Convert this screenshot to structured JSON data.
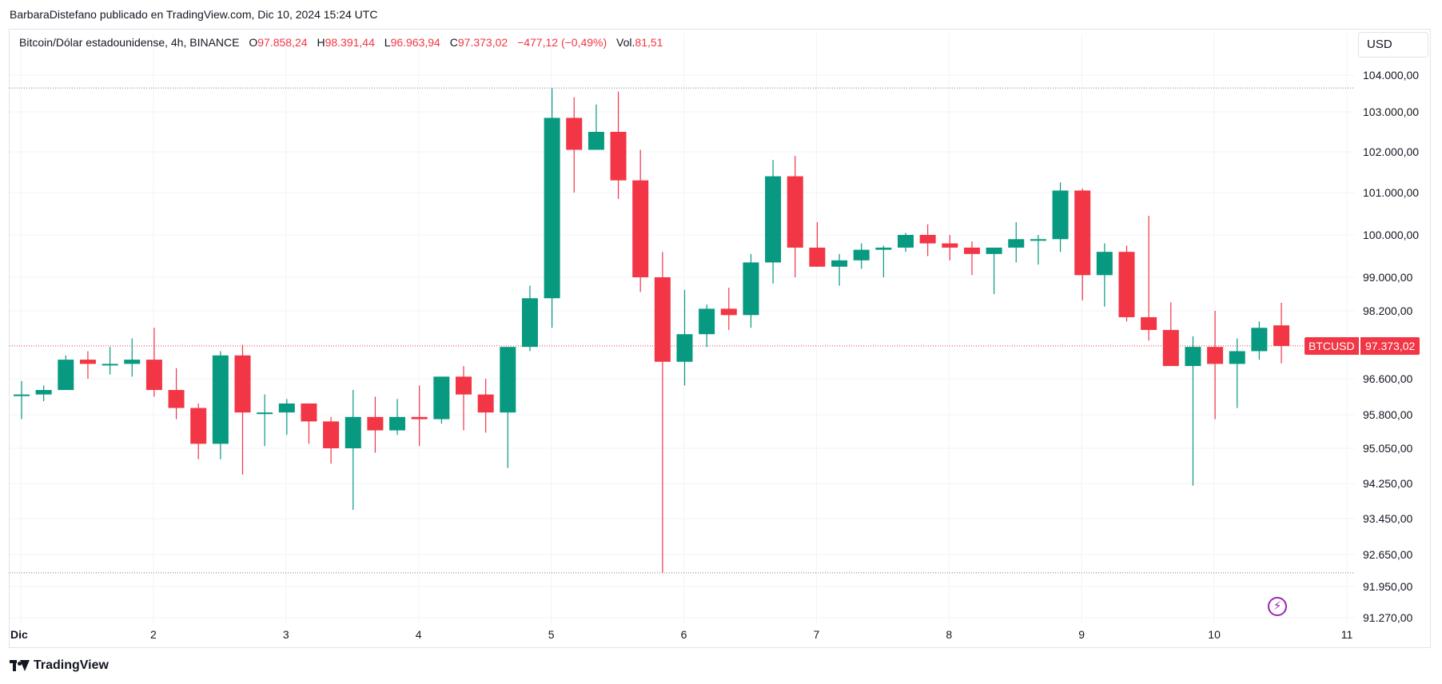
{
  "caption": "BarbaraDistefano publicado en TradingView.com, Dic 10, 2024 15:24 UTC",
  "legend": {
    "symbol": "Bitcoin/Dólar estadounidense, 4h, BINANCE",
    "o_label": "O",
    "o_value": "97.858,24",
    "h_label": "H",
    "h_value": "98.391,44",
    "l_label": "L",
    "l_value": "96.963,94",
    "c_label": "C",
    "c_value": "97.373,02",
    "change": "−477,12 (−0,49%)",
    "vol_label": "Vol.",
    "vol_value": "81,51"
  },
  "currency": "USD",
  "price_tag": {
    "symbol": "BTCUSD",
    "price": "97.373,02"
  },
  "brand": "TradingView",
  "colors": {
    "up": "#089981",
    "down": "#f23645",
    "grid": "#f0f3fa",
    "accent": "#9c27b0"
  },
  "icons": {
    "flash": "lightning-icon",
    "brand": "tradingview-logo-icon"
  },
  "chart_data": {
    "type": "candlestick",
    "timeframe": "4h",
    "y_ticks": [
      104000,
      103000,
      102000,
      101000,
      100000,
      99000,
      98200,
      96600,
      95800,
      95050,
      94250,
      93450,
      92650,
      91950,
      91270
    ],
    "y_tick_labels": [
      "104.000,00",
      "103.000,00",
      "102.000,00",
      "101.000,00",
      "100.000,00",
      "99.000,00",
      "98.200,00",
      "96.600,00",
      "95.800,00",
      "95.050,00",
      "94.250,00",
      "93.450,00",
      "92.650,00",
      "91.950,00",
      "91.270,00"
    ],
    "x_ticks": [
      {
        "label": "Dic",
        "pos": 0,
        "bold": true
      },
      {
        "label": "2",
        "pos": 6
      },
      {
        "label": "3",
        "pos": 12
      },
      {
        "label": "4",
        "pos": 18
      },
      {
        "label": "5",
        "pos": 24
      },
      {
        "label": "6",
        "pos": 30
      },
      {
        "label": "7",
        "pos": 36
      },
      {
        "label": "8",
        "pos": 42
      },
      {
        "label": "9",
        "pos": 48
      },
      {
        "label": "10",
        "pos": 54
      },
      {
        "label": "11",
        "pos": 60
      }
    ],
    "reference_lines": [
      103650,
      92250,
      97373
    ],
    "last_price": 97373.02,
    "candles": [
      {
        "o": 96250,
        "h": 96550,
        "l": 95700,
        "c": 96250
      },
      {
        "o": 96250,
        "h": 96450,
        "l": 96100,
        "c": 96350
      },
      {
        "o": 96350,
        "h": 97150,
        "l": 96350,
        "c": 97050
      },
      {
        "o": 97050,
        "h": 97250,
        "l": 96600,
        "c": 96950
      },
      {
        "o": 96950,
        "h": 97350,
        "l": 96700,
        "c": 96950
      },
      {
        "o": 96950,
        "h": 97550,
        "l": 96650,
        "c": 97050
      },
      {
        "o": 97050,
        "h": 97800,
        "l": 96200,
        "c": 96350
      },
      {
        "o": 96350,
        "h": 96850,
        "l": 95700,
        "c": 95950
      },
      {
        "o": 95950,
        "h": 96050,
        "l": 94800,
        "c": 95150
      },
      {
        "o": 95150,
        "h": 97250,
        "l": 94800,
        "c": 97150
      },
      {
        "o": 97150,
        "h": 97400,
        "l": 94450,
        "c": 95850
      },
      {
        "o": 95850,
        "h": 96250,
        "l": 95100,
        "c": 95850
      },
      {
        "o": 95850,
        "h": 96150,
        "l": 95350,
        "c": 96050
      },
      {
        "o": 96050,
        "h": 96050,
        "l": 95150,
        "c": 95650
      },
      {
        "o": 95650,
        "h": 95750,
        "l": 94700,
        "c": 95050
      },
      {
        "o": 95050,
        "h": 96350,
        "l": 93650,
        "c": 95750
      },
      {
        "o": 95750,
        "h": 96200,
        "l": 94950,
        "c": 95450
      },
      {
        "o": 95450,
        "h": 96150,
        "l": 95350,
        "c": 95750
      },
      {
        "o": 95750,
        "h": 96450,
        "l": 95100,
        "c": 95700
      },
      {
        "o": 95700,
        "h": 96650,
        "l": 95600,
        "c": 96650
      },
      {
        "o": 96650,
        "h": 96900,
        "l": 95450,
        "c": 96250
      },
      {
        "o": 96250,
        "h": 96600,
        "l": 95400,
        "c": 95850
      },
      {
        "o": 95850,
        "h": 97350,
        "l": 94600,
        "c": 97350
      },
      {
        "o": 97350,
        "h": 98800,
        "l": 97250,
        "c": 98500
      },
      {
        "o": 98500,
        "h": 103650,
        "l": 97800,
        "c": 102850
      },
      {
        "o": 102850,
        "h": 103400,
        "l": 101000,
        "c": 102050
      },
      {
        "o": 102050,
        "h": 103200,
        "l": 102050,
        "c": 102500
      },
      {
        "o": 102500,
        "h": 103550,
        "l": 100850,
        "c": 101300
      },
      {
        "o": 101300,
        "h": 102050,
        "l": 98650,
        "c": 99000
      },
      {
        "o": 99000,
        "h": 99600,
        "l": 92250,
        "c": 97000
      },
      {
        "o": 97000,
        "h": 98700,
        "l": 96450,
        "c": 97650
      },
      {
        "o": 97650,
        "h": 98350,
        "l": 97350,
        "c": 98250
      },
      {
        "o": 98250,
        "h": 98750,
        "l": 97750,
        "c": 98100
      },
      {
        "o": 98100,
        "h": 99550,
        "l": 97800,
        "c": 99350
      },
      {
        "o": 99350,
        "h": 101800,
        "l": 98850,
        "c": 101400
      },
      {
        "o": 101400,
        "h": 101900,
        "l": 99000,
        "c": 99700
      },
      {
        "o": 99700,
        "h": 100300,
        "l": 99250,
        "c": 99250
      },
      {
        "o": 99250,
        "h": 99550,
        "l": 98800,
        "c": 99400
      },
      {
        "o": 99400,
        "h": 99800,
        "l": 99200,
        "c": 99650
      },
      {
        "o": 99650,
        "h": 99750,
        "l": 99000,
        "c": 99700
      },
      {
        "o": 99700,
        "h": 100050,
        "l": 99600,
        "c": 100000
      },
      {
        "o": 100000,
        "h": 100250,
        "l": 99500,
        "c": 99800
      },
      {
        "o": 99800,
        "h": 100000,
        "l": 99400,
        "c": 99700
      },
      {
        "o": 99700,
        "h": 99850,
        "l": 99050,
        "c": 99550
      },
      {
        "o": 99550,
        "h": 99700,
        "l": 98600,
        "c": 99700
      },
      {
        "o": 99700,
        "h": 100300,
        "l": 99350,
        "c": 99900
      },
      {
        "o": 99900,
        "h": 100000,
        "l": 99300,
        "c": 99900
      },
      {
        "o": 99900,
        "h": 101250,
        "l": 99600,
        "c": 101050
      },
      {
        "o": 101050,
        "h": 101100,
        "l": 98450,
        "c": 99050
      },
      {
        "o": 99050,
        "h": 99800,
        "l": 98300,
        "c": 99600
      },
      {
        "o": 99600,
        "h": 99750,
        "l": 97950,
        "c": 98050
      },
      {
        "o": 98050,
        "h": 100450,
        "l": 97500,
        "c": 97750
      },
      {
        "o": 97750,
        "h": 98400,
        "l": 96950,
        "c": 96900
      },
      {
        "o": 96900,
        "h": 97600,
        "l": 94200,
        "c": 97350
      },
      {
        "o": 97350,
        "h": 98200,
        "l": 95700,
        "c": 96950
      },
      {
        "o": 96950,
        "h": 97550,
        "l": 95950,
        "c": 97250
      },
      {
        "o": 97250,
        "h": 97950,
        "l": 97050,
        "c": 97800
      },
      {
        "o": 97858,
        "h": 98391,
        "l": 96964,
        "c": 97373
      }
    ]
  }
}
